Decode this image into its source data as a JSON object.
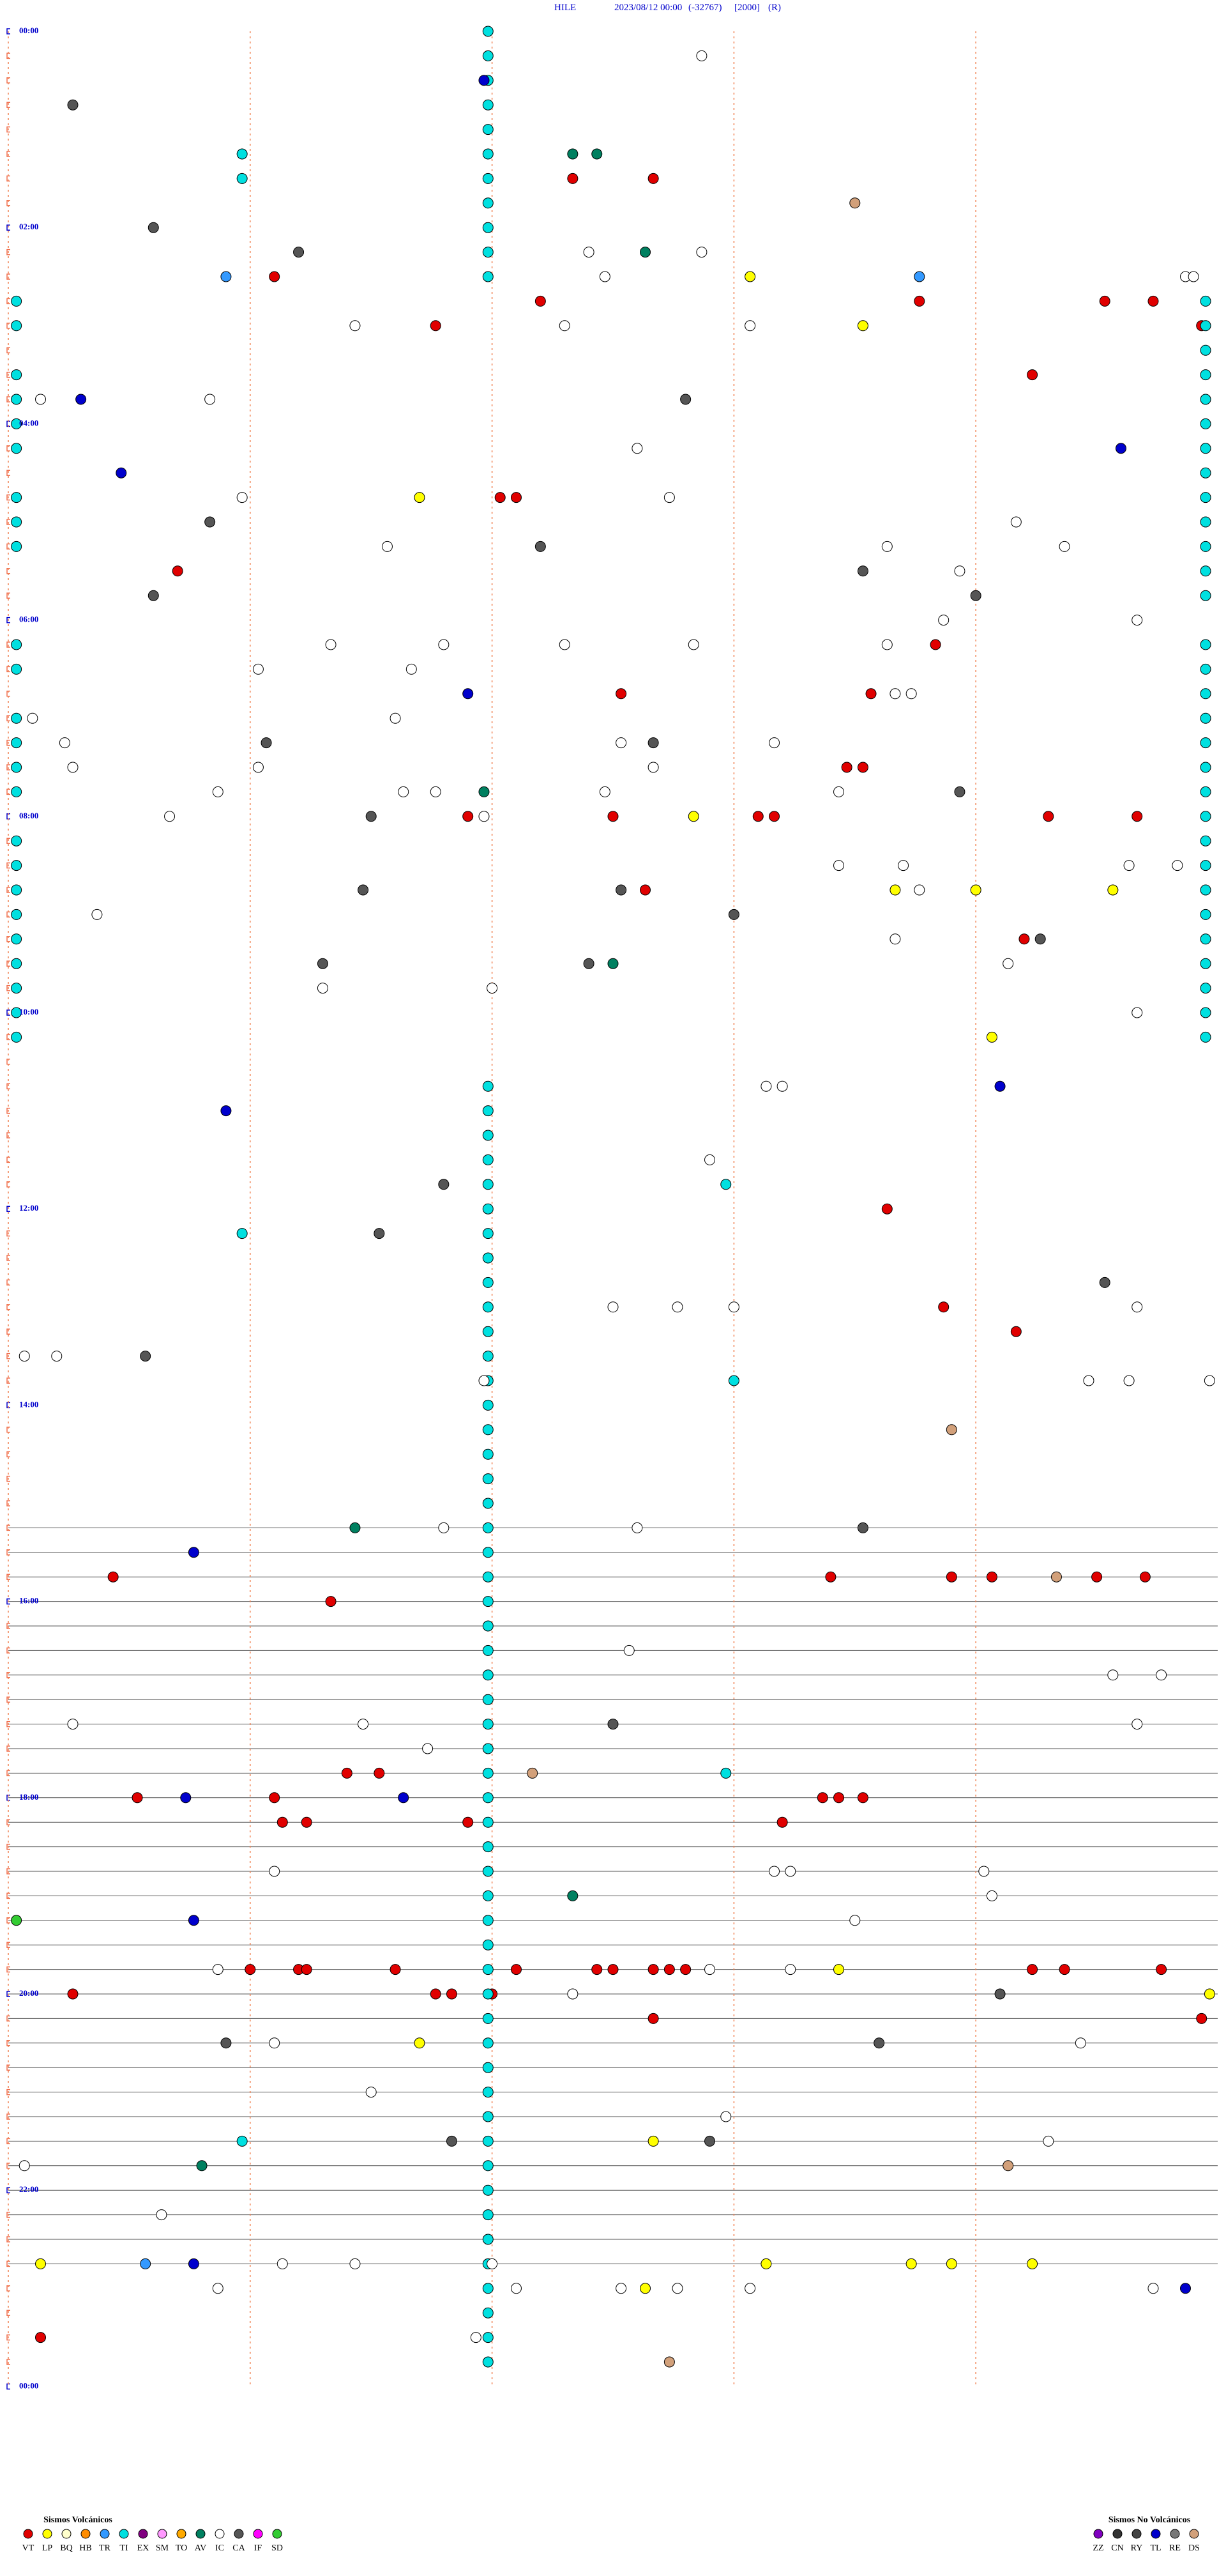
{
  "header": {
    "parts": [
      "HILE",
      "2023/08/12 00:00",
      "(-32767)",
      "[2000]",
      "(R)"
    ]
  },
  "hour_labels": [
    "00:00",
    "02:00",
    "04:00",
    "06:00",
    "08:00",
    "10:00",
    "12:00",
    "14:00",
    "16:00",
    "18:00",
    "20:00",
    "22:00",
    "00:00"
  ],
  "legend": {
    "volcanic": {
      "title": "Sismos Volcánicos",
      "items": [
        {
          "code": "VT",
          "color": "#e00000"
        },
        {
          "code": "LP",
          "color": "#ffff00"
        },
        {
          "code": "BQ",
          "color": "#ffffcc"
        },
        {
          "code": "HB",
          "color": "#ff8c00"
        },
        {
          "code": "TR",
          "color": "#3399ff"
        },
        {
          "code": "TI",
          "color": "#00e0e0"
        },
        {
          "code": "EX",
          "color": "#800080"
        },
        {
          "code": "SM",
          "color": "#ff99ff"
        },
        {
          "code": "TO",
          "color": "#ffaa00"
        },
        {
          "code": "AV",
          "color": "#008060"
        },
        {
          "code": "IC",
          "color": "#ffffff"
        },
        {
          "code": "CA",
          "color": "#555555"
        },
        {
          "code": "IF",
          "color": "#ff00ff"
        },
        {
          "code": "SD",
          "color": "#33cc33"
        }
      ]
    },
    "non_volcanic": {
      "title": "Sismos No Volcánicos",
      "items": [
        {
          "code": "ZZ",
          "color": "#8000c0"
        },
        {
          "code": "CN",
          "color": "#333333"
        },
        {
          "code": "RY",
          "color": "#444444"
        },
        {
          "code": "TL",
          "color": "#0000cc"
        },
        {
          "code": "RE",
          "color": "#777777"
        },
        {
          "code": "DS",
          "color": "#d2a07a"
        }
      ]
    }
  },
  "events": {
    "VT": [
      97.0,
      98.0,
      153.3,
      176.3,
      178.6,
      179.2,
      185.3,
      171.6,
      194.8,
      222.7,
      291.1,
      291.3,
      332.1,
      386.5,
      412.6,
      415.7,
      460.4,
      460.6,
      492.9,
      494.0,
      485.7,
      487.5,
      489.3,
      489.5,
      532.9,
      567.6,
      730.9,
      791.6,
      807.5,
      955.2,
      956.7,
      957.2,
      958.5,
      959.1,
      946.3,
      964.0,
      1069.2,
      1069.6,
      1081.6,
      1083.3,
      1090.1,
      1090.3,
      1090.6,
      1104.6,
      1098.4,
      1098.7,
      1100.7,
      1188.0,
      1188.6,
      1188.7,
      1189.8,
      1191.3,
      1192.3,
      1192.5,
      1193.0,
      1193.2,
      1193.4,
      1197.7,
      1198.1,
      1199.3,
      1200.8,
      1205.3,
      1205.5,
      1206.0,
      1229.8,
      1223.0,
      1410.4
    ],
    "LP": [
      159.2,
      190.6,
      290.1,
      488.5,
      536.0,
      537.0,
      538.7,
      627.2,
      1195.3,
      1214.9,
      1235.1,
      1298.0,
      1365.4,
      1376.2,
      1377.7,
      1374.4,
      1376.7,
      1387.9
    ],
    "TR": [
      161.3,
      152.7,
      1366.7
    ],
    "TI": [
      77.9,
      92.9,
      713.9,
      737.9,
      834.0,
      1073.9,
      1292.9,
      5.95,
      20.95,
      35.95,
      50.95,
      65.95,
      80.95,
      95.95,
      110.95,
      125.95,
      140.95,
      155.95,
      650.95,
      665.95,
      680.95,
      695.95,
      710.95,
      725.95,
      740.95,
      755.95,
      770.95,
      785.95,
      800.95,
      815.95,
      830.95,
      845.95,
      860.95,
      875.95,
      890.95,
      905.95,
      920.95,
      935.95,
      950.95,
      965.95,
      980.95,
      995.95,
      1010.95,
      1025.95,
      1040.95,
      1055.95,
      1070.95,
      1085.95,
      1100.95,
      1115.95,
      1130.95,
      1145.95,
      1160.95,
      1175.95,
      1190.95,
      1205.95,
      1220.95,
      1235.95,
      1250.95,
      1265.95,
      1280.95,
      1295.95,
      1310.95,
      1325.95,
      1340.95,
      1355.95,
      1370.95,
      1385.95,
      1400.95,
      1415.95,
      1430.95,
      179.85,
      194.85,
      209.85,
      224.85,
      239.85,
      254.85,
      269.85,
      284.85,
      299.85,
      314.85,
      329.85,
      344.85,
      359.85,
      389.85,
      404.85,
      419.85,
      434.85,
      449.85,
      464.85,
      479.85,
      494.85,
      509.85,
      524.85,
      539.85,
      554.85,
      569.85,
      584.85,
      599.85,
      614.85,
      629.85,
      165.1,
      180.1,
      210.1,
      225.1,
      240.1,
      255.1,
      285.1,
      300.1,
      315.1,
      375.1,
      390.1,
      420.1,
      435.1,
      450.1,
      465.1,
      495.1,
      510.1,
      525.1,
      540.1,
      555.1,
      570.1,
      585.1,
      600.1,
      615.1
    ],
    "AV": [
      82.0,
      82.3,
      142.9,
      470.9,
      577.5,
      919.3,
      1147.0,
      1307.4
    ],
    "IC": [
      23.6,
      142.2,
      157.4,
      143.6,
      164.6,
      164.7,
      184.3,
      186.9,
      189.2,
      225.4,
      227.5,
      262.8,
      287.9,
      293.2,
      319.7,
      325.9,
      312.5,
      328.1,
      341.8,
      371.6,
      374.0,
      379.0,
      381.9,
      385.9,
      380.4,
      383.5,
      393.1,
      395.0,
      416.0,
      416.2,
      424.8,
      420.3,
      442.6,
      435.7,
      450.8,
      453.1,
      458.0,
      444.5,
      472.4,
      467.6,
      469.9,
      470.3,
      475.3,
      482.0,
      485.9,
      520.3,
      521.1,
      536.3,
      523.9,
      524.5,
      541.1,
      566.0,
      582.4,
      588.9,
      591.0,
      614.0,
      654.4,
      654.6,
      698.7,
      794.0,
      787.5,
      788.3,
      789.0,
      810.2,
      810.6,
      830.9,
      838.4,
      838.9,
      839.9,
      920.4,
      922.8,
      997.7,
      1018.7,
      1019.3,
      1035.8,
      1039.4,
      1049.0,
      1055.2,
      1128.3,
      1134.5,
      1134.7,
      1137.1,
      1152.2,
      1165.5,
      1193.7,
      1194.7,
      1187.6,
      1207.0,
      1233.3,
      1243.3,
      1264.5,
      1283.9,
      1302.9,
      1305.2,
      1336.9,
      1369.3,
      1368.4,
      1371.0,
      1386.3,
      1387.6,
      1388.3,
      1389.2,
      1394.2,
      1382.6,
      1415.8
    ],
    "CA": [
      45.8,
      121.8,
      138.6,
      233.4,
      302.5,
      321.6,
      340.6,
      346.8,
      357.0,
      443.0,
      438.2,
      476.8,
      484.5,
      532.6,
      529.4,
      549.0,
      567.8,
      577.2,
      573.9,
      710.4,
      739.6,
      778.6,
      811.7,
      925.6,
      1042.5,
      1232.7,
      1212.3,
      1240.8,
      1295.5,
      1298.7
    ],
    "SD": [
      1155.1
    ],
    "TL": [
      35.9,
      225.9,
      268.8,
      271.4,
      410.7,
      657.3,
      662.7,
      932.3,
      1082.2,
      1084.9,
      1157.3,
      1367.3,
      1394.6
    ],
    "DS": [
      115.5,
      866.7,
      958.0,
      1071.5,
      1317.4,
      1433.2
    ]
  }
}
